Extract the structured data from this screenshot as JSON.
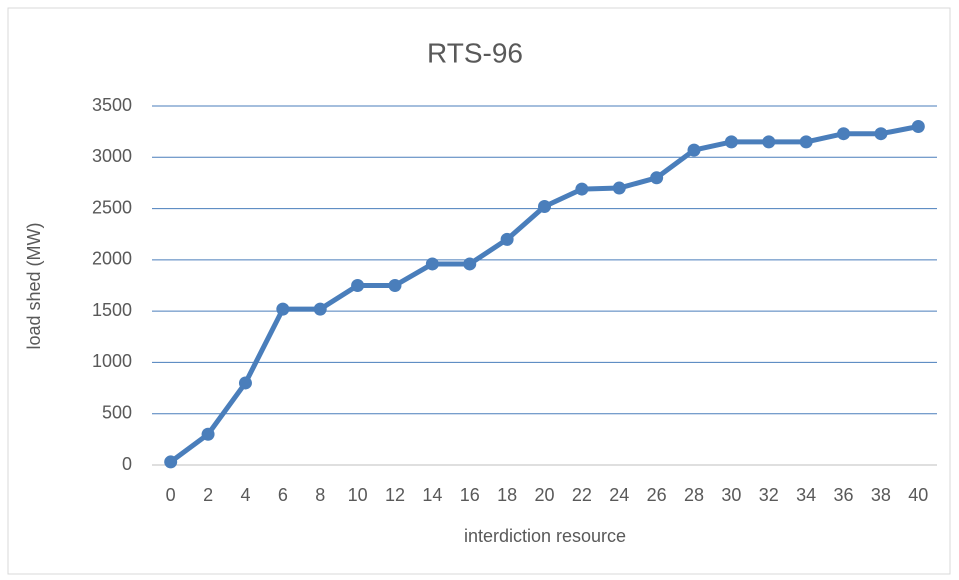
{
  "chart_data": {
    "type": "line",
    "title": "RTS-96",
    "x_label": "interdiction resource",
    "y_label": "load shed (MW)",
    "categories": [
      "0",
      "2",
      "4",
      "6",
      "8",
      "10",
      "12",
      "14",
      "16",
      "18",
      "20",
      "22",
      "24",
      "26",
      "28",
      "30",
      "32",
      "34",
      "36",
      "38",
      "40"
    ],
    "series": [
      {
        "name": "load shed",
        "color": "#4a7ebb",
        "values": [
          30,
          300,
          800,
          1520,
          1520,
          1750,
          1750,
          1960,
          1960,
          2200,
          2520,
          2690,
          2700,
          2800,
          3070,
          3150,
          3150,
          3150,
          3230,
          3230,
          3300
        ]
      }
    ],
    "ylim": [
      0,
      3500
    ],
    "yticks": [
      0,
      500,
      1000,
      1500,
      2000,
      2500,
      3000,
      3500
    ],
    "grid": true
  }
}
